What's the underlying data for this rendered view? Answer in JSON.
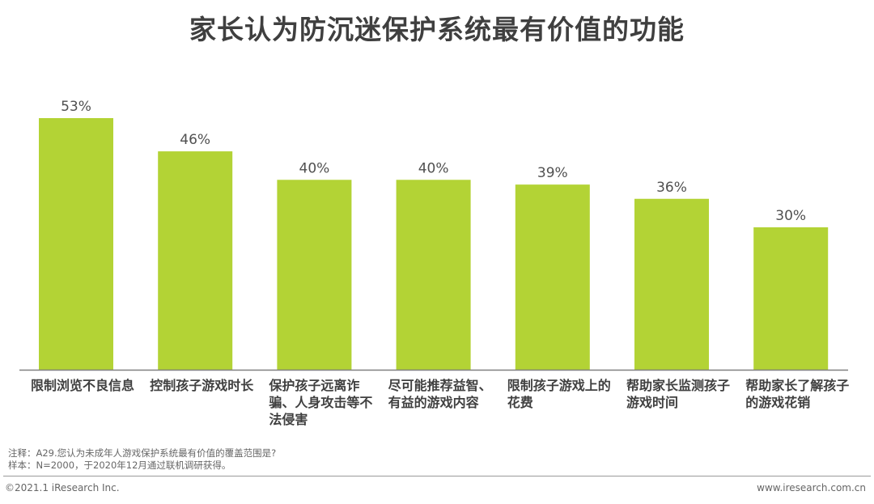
{
  "title": "家长认为防沉迷保护系统最有价值的功能",
  "colors": {
    "bar": "#b3d335",
    "axis": "#808080",
    "text": "#404040"
  },
  "chart_data": {
    "type": "bar",
    "categories": [
      "限制浏览不良信息",
      "控制孩子游戏时长",
      "保护孩子远离诈骗、人身攻击等不法侵害",
      "尽可能推荐益智、有益的游戏内容",
      "限制孩子游戏上的花费",
      "帮助家长监测孩子游戏时间",
      "帮助家长了解孩子的游戏花销"
    ],
    "values": [
      53,
      46,
      40,
      40,
      39,
      36,
      30
    ],
    "data_labels": [
      "53%",
      "46%",
      "40%",
      "40%",
      "39%",
      "36%",
      "30%"
    ],
    "ylim": [
      0,
      53
    ],
    "grid": false
  },
  "footer": {
    "note": "注释：A29.您认为未成年人游戏保护系统最有价值的覆盖范围是?",
    "sample": "样本：N=2000，于2020年12月通过联机调研获得。",
    "copyright": "©2021.1 iResearch Inc.",
    "website": "www.iresearch.com.cn"
  }
}
